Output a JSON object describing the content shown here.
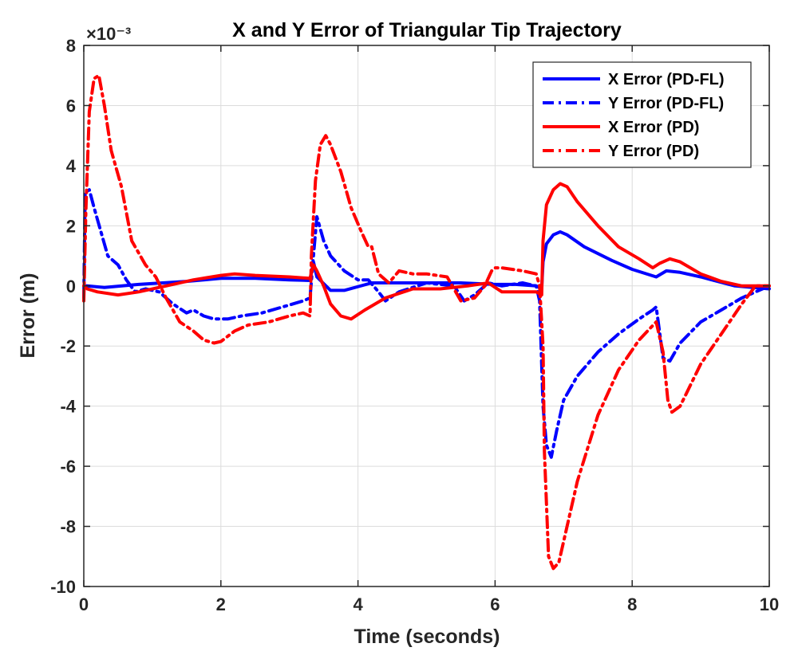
{
  "chart_data": {
    "type": "line",
    "title": "X and Y Error of Triangular Tip Trajectory",
    "xlabel": "Time (seconds)",
    "ylabel": "Error (m)",
    "y_exponent_label": "×10⁻³",
    "xlim": [
      0,
      10
    ],
    "ylim": [
      -10,
      8
    ],
    "xticks": [
      0,
      2,
      4,
      6,
      8,
      10
    ],
    "yticks": [
      -10,
      -8,
      -6,
      -4,
      -2,
      0,
      2,
      4,
      6,
      8
    ],
    "grid": true,
    "legend_position": "top-right",
    "series": [
      {
        "name": "X Error (PD-FL)",
        "color": "#0000ff",
        "dash": "solid",
        "x": [
          0,
          0.05,
          0.3,
          0.8,
          1.5,
          2.0,
          2.5,
          3.0,
          3.3,
          3.35,
          3.4,
          3.6,
          3.8,
          4.2,
          4.6,
          5.0,
          5.5,
          6.0,
          6.3,
          6.6,
          6.68,
          6.7,
          6.75,
          6.85,
          6.95,
          7.05,
          7.3,
          7.7,
          8.0,
          8.35,
          8.5,
          8.7,
          9.0,
          9.5,
          10.0
        ],
        "y": [
          0,
          0,
          -0.05,
          0.05,
          0.15,
          0.25,
          0.25,
          0.2,
          0.18,
          0.8,
          0.3,
          -0.15,
          -0.15,
          0.1,
          0.1,
          0.1,
          0.1,
          0.05,
          0.05,
          0,
          -0.1,
          0.8,
          1.4,
          1.7,
          1.8,
          1.7,
          1.3,
          0.85,
          0.55,
          0.3,
          0.5,
          0.45,
          0.3,
          0,
          -0.1
        ]
      },
      {
        "name": "Y Error (PD-FL)",
        "color": "#0000ff",
        "dash": "dashdot",
        "x": [
          0,
          0.02,
          0.08,
          0.15,
          0.25,
          0.35,
          0.5,
          0.62,
          0.75,
          0.9,
          1.1,
          1.3,
          1.5,
          1.6,
          1.75,
          1.9,
          2.1,
          2.3,
          2.6,
          2.9,
          3.2,
          3.3,
          3.35,
          3.4,
          3.5,
          3.6,
          3.8,
          4.0,
          4.15,
          4.3,
          4.4,
          4.6,
          5.0,
          5.4,
          5.55,
          5.7,
          5.9,
          6.1,
          6.4,
          6.6,
          6.65,
          6.7,
          6.75,
          6.82,
          6.9,
          7.0,
          7.2,
          7.5,
          7.8,
          8.1,
          8.3,
          8.35,
          8.45,
          8.55,
          8.7,
          9.0,
          9.3,
          9.6,
          9.8,
          10.0
        ],
        "y": [
          -0.4,
          3.1,
          3.2,
          2.6,
          1.8,
          1.0,
          0.7,
          0.2,
          -0.2,
          -0.1,
          -0.2,
          -0.6,
          -0.9,
          -0.8,
          -1.0,
          -1.1,
          -1.1,
          -1.0,
          -0.9,
          -0.7,
          -0.5,
          -0.4,
          1.0,
          2.3,
          1.5,
          1.0,
          0.5,
          0.2,
          0.2,
          -0.2,
          -0.5,
          -0.2,
          0.1,
          0.0,
          -0.5,
          -0.3,
          0.1,
          0.0,
          0.1,
          0.0,
          -0.5,
          -4.0,
          -5.3,
          -5.7,
          -4.8,
          -3.8,
          -3.0,
          -2.2,
          -1.6,
          -1.1,
          -0.8,
          -0.7,
          -2.4,
          -2.5,
          -1.9,
          -1.2,
          -0.8,
          -0.4,
          -0.2,
          0.0
        ]
      },
      {
        "name": "X Error (PD)",
        "color": "#ff0000",
        "dash": "solid",
        "x": [
          0,
          0.05,
          0.2,
          0.5,
          0.8,
          1.2,
          1.6,
          2.0,
          2.2,
          2.5,
          3.0,
          3.3,
          3.35,
          3.4,
          3.5,
          3.6,
          3.75,
          3.9,
          4.1,
          4.4,
          4.8,
          5.2,
          5.6,
          5.9,
          6.1,
          6.4,
          6.6,
          6.68,
          6.7,
          6.75,
          6.85,
          6.95,
          7.05,
          7.2,
          7.5,
          7.8,
          8.1,
          8.3,
          8.4,
          8.55,
          8.7,
          9.0,
          9.3,
          9.6,
          10.0
        ],
        "y": [
          0,
          -0.1,
          -0.2,
          -0.3,
          -0.2,
          0.0,
          0.2,
          0.35,
          0.4,
          0.35,
          0.3,
          0.25,
          0.7,
          0.5,
          0.0,
          -0.6,
          -1.0,
          -1.1,
          -0.8,
          -0.4,
          -0.1,
          -0.1,
          0.0,
          0.1,
          -0.2,
          -0.2,
          -0.2,
          -0.3,
          1.5,
          2.7,
          3.2,
          3.4,
          3.3,
          2.8,
          2.0,
          1.3,
          0.9,
          0.6,
          0.75,
          0.9,
          0.8,
          0.4,
          0.15,
          0.0,
          0.0
        ]
      },
      {
        "name": "Y Error (PD)",
        "color": "#ff0000",
        "dash": "dashdot",
        "x": [
          0,
          0.03,
          0.08,
          0.15,
          0.22,
          0.3,
          0.4,
          0.55,
          0.7,
          0.9,
          1.05,
          1.2,
          1.4,
          1.6,
          1.75,
          1.9,
          2.0,
          2.2,
          2.4,
          2.7,
          3.0,
          3.2,
          3.3,
          3.32,
          3.38,
          3.45,
          3.53,
          3.6,
          3.75,
          3.9,
          4.05,
          4.15,
          4.2,
          4.3,
          4.45,
          4.6,
          4.8,
          5.0,
          5.3,
          5.5,
          5.7,
          5.85,
          5.95,
          6.0,
          6.1,
          6.4,
          6.6,
          6.65,
          6.7,
          6.72,
          6.78,
          6.85,
          6.93,
          7.05,
          7.2,
          7.5,
          7.8,
          8.1,
          8.35,
          8.45,
          8.52,
          8.58,
          8.7,
          9.0,
          9.3,
          9.6,
          9.8,
          10.0
        ],
        "y": [
          -0.5,
          2.5,
          5.8,
          6.9,
          7.0,
          6.0,
          4.5,
          3.3,
          1.5,
          0.7,
          0.3,
          -0.4,
          -1.2,
          -1.5,
          -1.8,
          -1.9,
          -1.85,
          -1.5,
          -1.3,
          -1.2,
          -1.0,
          -0.9,
          -1.0,
          1.0,
          3.5,
          4.7,
          5.0,
          4.7,
          3.8,
          2.6,
          1.8,
          1.3,
          1.3,
          0.4,
          0.1,
          0.5,
          0.4,
          0.4,
          0.3,
          -0.5,
          -0.4,
          0.0,
          0.5,
          0.6,
          0.6,
          0.5,
          0.4,
          0.0,
          -2.0,
          -5.5,
          -9.0,
          -9.4,
          -9.2,
          -8.0,
          -6.5,
          -4.3,
          -2.8,
          -1.8,
          -1.2,
          -2.2,
          -3.8,
          -4.2,
          -4.0,
          -2.6,
          -1.6,
          -0.6,
          0.0,
          0.0
        ]
      }
    ]
  }
}
